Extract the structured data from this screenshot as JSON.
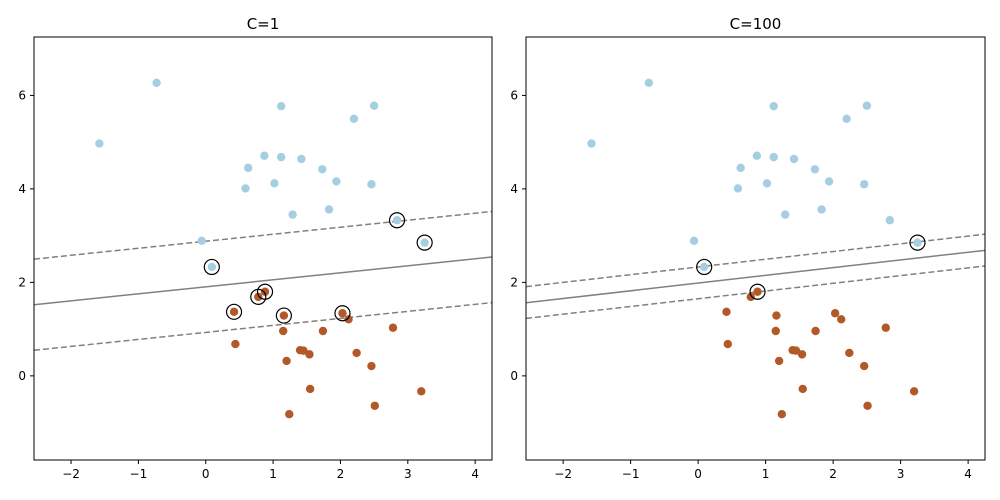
{
  "colors": {
    "class_0": "#a6cee3",
    "class_1": "#b15928",
    "decision_line": "#808080",
    "sv_ring": "#000000"
  },
  "chart_data": [
    {
      "type": "scatter",
      "title": "C=1",
      "xlabel": "",
      "ylabel": "",
      "xlim": [
        -2.55,
        4.25
      ],
      "ylim": [
        -1.8,
        7.25
      ],
      "xticks": [
        -2,
        -1,
        0,
        1,
        2,
        3,
        4
      ],
      "yticks": [
        0,
        2,
        4,
        6
      ],
      "grid": false,
      "series": [
        {
          "class": 0,
          "points": [
            [
              -1.58,
              4.97
            ],
            [
              -0.73,
              6.27
            ],
            [
              -0.06,
              2.89
            ],
            [
              0.09,
              2.33
            ],
            [
              0.59,
              4.01
            ],
            [
              0.63,
              4.45
            ],
            [
              0.87,
              4.71
            ],
            [
              1.02,
              4.12
            ],
            [
              1.12,
              5.77
            ],
            [
              1.12,
              4.68
            ],
            [
              1.29,
              3.45
            ],
            [
              1.42,
              4.64
            ],
            [
              1.73,
              4.42
            ],
            [
              1.83,
              3.56
            ],
            [
              1.94,
              4.16
            ],
            [
              2.2,
              5.5
            ],
            [
              2.46,
              4.1
            ],
            [
              2.5,
              5.78
            ],
            [
              2.84,
              3.33
            ],
            [
              3.25,
              2.85
            ]
          ]
        },
        {
          "class": 1,
          "points": [
            [
              0.42,
              1.37
            ],
            [
              0.44,
              0.68
            ],
            [
              0.78,
              1.69
            ],
            [
              0.88,
              1.8
            ],
            [
              1.15,
              0.96
            ],
            [
              1.16,
              1.29
            ],
            [
              1.2,
              0.32
            ],
            [
              1.24,
              -0.82
            ],
            [
              1.4,
              0.55
            ],
            [
              1.45,
              0.54
            ],
            [
              1.54,
              0.46
            ],
            [
              1.55,
              -0.28
            ],
            [
              1.74,
              0.96
            ],
            [
              2.03,
              1.34
            ],
            [
              2.12,
              1.21
            ],
            [
              2.24,
              0.49
            ],
            [
              2.46,
              0.21
            ],
            [
              2.51,
              -0.64
            ],
            [
              2.78,
              1.03
            ],
            [
              3.2,
              -0.33
            ]
          ]
        }
      ],
      "support_vectors": [
        [
          0.09,
          2.33
        ],
        [
          0.42,
          1.37
        ],
        [
          0.78,
          1.69
        ],
        [
          0.88,
          1.8
        ],
        [
          1.16,
          1.29
        ],
        [
          2.03,
          1.34
        ],
        [
          2.84,
          3.33
        ],
        [
          3.25,
          2.85
        ]
      ],
      "decision_boundary": {
        "slope": 0.15,
        "intercept": 1.905
      },
      "margin_lines": [
        {
          "slope": 0.15,
          "intercept": 2.88
        },
        {
          "slope": 0.15,
          "intercept": 0.93
        }
      ]
    },
    {
      "type": "scatter",
      "title": "C=100",
      "xlabel": "",
      "ylabel": "",
      "xlim": [
        -2.55,
        4.25
      ],
      "ylim": [
        -1.8,
        7.25
      ],
      "xticks": [
        -2,
        -1,
        0,
        1,
        2,
        3,
        4
      ],
      "yticks": [
        0,
        2,
        4,
        6
      ],
      "grid": false,
      "series": [
        {
          "class": 0,
          "points": [
            [
              -1.58,
              4.97
            ],
            [
              -0.73,
              6.27
            ],
            [
              -0.06,
              2.89
            ],
            [
              0.09,
              2.33
            ],
            [
              0.59,
              4.01
            ],
            [
              0.63,
              4.45
            ],
            [
              0.87,
              4.71
            ],
            [
              1.02,
              4.12
            ],
            [
              1.12,
              5.77
            ],
            [
              1.12,
              4.68
            ],
            [
              1.29,
              3.45
            ],
            [
              1.42,
              4.64
            ],
            [
              1.73,
              4.42
            ],
            [
              1.83,
              3.56
            ],
            [
              1.94,
              4.16
            ],
            [
              2.2,
              5.5
            ],
            [
              2.46,
              4.1
            ],
            [
              2.5,
              5.78
            ],
            [
              2.84,
              3.33
            ],
            [
              3.25,
              2.85
            ]
          ]
        },
        {
          "class": 1,
          "points": [
            [
              0.42,
              1.37
            ],
            [
              0.44,
              0.68
            ],
            [
              0.78,
              1.69
            ],
            [
              0.88,
              1.8
            ],
            [
              1.15,
              0.96
            ],
            [
              1.16,
              1.29
            ],
            [
              1.2,
              0.32
            ],
            [
              1.24,
              -0.82
            ],
            [
              1.4,
              0.55
            ],
            [
              1.45,
              0.54
            ],
            [
              1.54,
              0.46
            ],
            [
              1.55,
              -0.28
            ],
            [
              1.74,
              0.96
            ],
            [
              2.03,
              1.34
            ],
            [
              2.12,
              1.21
            ],
            [
              2.24,
              0.49
            ],
            [
              2.46,
              0.21
            ],
            [
              2.51,
              -0.64
            ],
            [
              2.78,
              1.03
            ],
            [
              3.2,
              -0.33
            ]
          ]
        }
      ],
      "support_vectors": [
        [
          0.09,
          2.33
        ],
        [
          0.88,
          1.8
        ],
        [
          3.25,
          2.85
        ]
      ],
      "decision_boundary": {
        "slope": 0.165,
        "intercept": 1.985
      },
      "margin_lines": [
        {
          "slope": 0.165,
          "intercept": 2.33
        },
        {
          "slope": 0.165,
          "intercept": 1.65
        }
      ]
    }
  ]
}
